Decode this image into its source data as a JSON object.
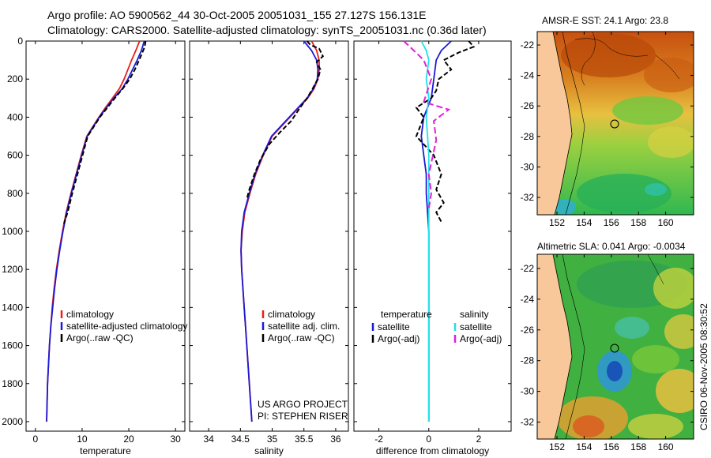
{
  "title": {
    "line1": "Argo profile: AO 5900562_44 30-Oct-2005 20051031_155 27.127S 156.131E",
    "line2": "Climatology: CARS2000. Satellite-adjusted climatology: synTS_20051031.nc (0.36d later)"
  },
  "colors": {
    "climatology": "#e8201a",
    "satellite": "#1a1ad6",
    "argo": "#000000",
    "salinity_sat": "#22e0e8",
    "salinity_argo": "#e020d8",
    "land": "#f8c89a"
  },
  "chart_data": [
    {
      "id": "temperature",
      "type": "line",
      "xlabel": "temperature",
      "xlim": [
        -2,
        32
      ],
      "ylim": [
        0,
        2050
      ],
      "xticks": [
        "0",
        "10",
        "20",
        "30"
      ],
      "yticks": [
        "0",
        "200",
        "400",
        "600",
        "800",
        "1000",
        "1200",
        "1400",
        "1600",
        "1800",
        "2000"
      ],
      "legend": [
        "climatology",
        "satellite-adjusted climatology",
        "Argo(..raw -QC)"
      ],
      "series": [
        {
          "name": "climatology",
          "color": "#e8201a",
          "dash": "",
          "points": [
            [
              22.3,
              0
            ],
            [
              21.5,
              50
            ],
            [
              20.6,
              100
            ],
            [
              19.8,
              150
            ],
            [
              19.0,
              200
            ],
            [
              18.0,
              250
            ],
            [
              16.5,
              300
            ],
            [
              15.0,
              350
            ],
            [
              13.6,
              400
            ],
            [
              12.3,
              450
            ],
            [
              11.0,
              500
            ],
            [
              9.8,
              600
            ],
            [
              8.7,
              700
            ],
            [
              7.6,
              800
            ],
            [
              6.6,
              900
            ],
            [
              5.8,
              1000
            ],
            [
              5.1,
              1100
            ],
            [
              4.5,
              1200
            ],
            [
              4.0,
              1300
            ],
            [
              3.6,
              1400
            ],
            [
              3.3,
              1500
            ],
            [
              3.0,
              1600
            ],
            [
              2.8,
              1700
            ],
            [
              2.6,
              1800
            ],
            [
              2.5,
              1900
            ],
            [
              2.4,
              2000
            ]
          ]
        },
        {
          "name": "satellite",
          "color": "#1a1ad6",
          "dash": "",
          "points": [
            [
              23.3,
              0
            ],
            [
              22.7,
              50
            ],
            [
              21.8,
              100
            ],
            [
              20.8,
              150
            ],
            [
              19.8,
              200
            ],
            [
              18.6,
              250
            ],
            [
              16.8,
              300
            ],
            [
              15.2,
              350
            ],
            [
              13.7,
              400
            ],
            [
              12.4,
              450
            ],
            [
              11.1,
              500
            ],
            [
              9.9,
              600
            ],
            [
              8.8,
              700
            ],
            [
              7.7,
              800
            ],
            [
              6.7,
              900
            ],
            [
              5.9,
              1000
            ],
            [
              5.2,
              1100
            ],
            [
              4.6,
              1200
            ],
            [
              4.1,
              1300
            ],
            [
              3.7,
              1400
            ],
            [
              3.3,
              1500
            ],
            [
              3.0,
              1600
            ],
            [
              2.8,
              1700
            ],
            [
              2.6,
              1800
            ],
            [
              2.5,
              1900
            ],
            [
              2.4,
              2000
            ]
          ]
        },
        {
          "name": "Argo",
          "color": "#000000",
          "dash": "6,3",
          "points": [
            [
              23.6,
              0
            ],
            [
              23.4,
              30
            ],
            [
              22.9,
              60
            ],
            [
              22.2,
              100
            ],
            [
              21.3,
              150
            ],
            [
              20.2,
              200
            ],
            [
              18.7,
              250
            ],
            [
              17.0,
              300
            ],
            [
              15.4,
              350
            ],
            [
              13.8,
              400
            ],
            [
              12.5,
              450
            ],
            [
              11.2,
              500
            ],
            [
              10.1,
              600
            ],
            [
              9.0,
              700
            ],
            [
              7.9,
              800
            ],
            [
              6.9,
              900
            ],
            [
              6.1,
              960
            ]
          ]
        }
      ]
    },
    {
      "id": "salinity",
      "type": "line",
      "xlabel": "salinity",
      "xlim": [
        33.7,
        36.2
      ],
      "ylim": [
        0,
        2050
      ],
      "xticks": [
        "34",
        "34.5",
        "35",
        "35.5",
        "36"
      ],
      "legend": [
        "climatology",
        "satellite adj. clim.",
        "Argo(..raw -QC)"
      ],
      "annotations": [
        "US ARGO PROJECT",
        "PI: STEPHEN RISER"
      ],
      "series": [
        {
          "name": "climatology",
          "color": "#e8201a",
          "dash": "",
          "points": [
            [
              35.62,
              0
            ],
            [
              35.7,
              50
            ],
            [
              35.74,
              100
            ],
            [
              35.74,
              150
            ],
            [
              35.72,
              200
            ],
            [
              35.66,
              250
            ],
            [
              35.56,
              300
            ],
            [
              35.42,
              350
            ],
            [
              35.28,
              400
            ],
            [
              35.14,
              450
            ],
            [
              35.0,
              500
            ],
            [
              34.86,
              600
            ],
            [
              34.74,
              700
            ],
            [
              34.65,
              800
            ],
            [
              34.57,
              900
            ],
            [
              34.53,
              1000
            ],
            [
              34.51,
              1100
            ],
            [
              34.52,
              1200
            ],
            [
              34.54,
              1300
            ],
            [
              34.56,
              1400
            ],
            [
              34.58,
              1500
            ],
            [
              34.6,
              1600
            ],
            [
              34.62,
              1700
            ],
            [
              34.64,
              1800
            ],
            [
              34.66,
              1900
            ],
            [
              34.68,
              2000
            ]
          ]
        },
        {
          "name": "satellite",
          "color": "#1a1ad6",
          "dash": "",
          "points": [
            [
              35.5,
              0
            ],
            [
              35.62,
              50
            ],
            [
              35.7,
              100
            ],
            [
              35.72,
              150
            ],
            [
              35.71,
              200
            ],
            [
              35.65,
              250
            ],
            [
              35.55,
              300
            ],
            [
              35.41,
              350
            ],
            [
              35.27,
              400
            ],
            [
              35.13,
              450
            ],
            [
              34.99,
              500
            ],
            [
              34.85,
              600
            ],
            [
              34.73,
              700
            ],
            [
              34.64,
              800
            ],
            [
              34.56,
              900
            ],
            [
              34.52,
              1000
            ],
            [
              34.51,
              1100
            ],
            [
              34.52,
              1200
            ],
            [
              34.54,
              1300
            ],
            [
              34.56,
              1400
            ],
            [
              34.58,
              1500
            ],
            [
              34.6,
              1600
            ],
            [
              34.62,
              1700
            ],
            [
              34.64,
              1800
            ],
            [
              34.66,
              1900
            ],
            [
              34.68,
              2000
            ]
          ]
        },
        {
          "name": "Argo",
          "color": "#000000",
          "dash": "6,3",
          "points": [
            [
              35.55,
              0
            ],
            [
              35.6,
              20
            ],
            [
              35.74,
              40
            ],
            [
              35.8,
              80
            ],
            [
              35.7,
              110
            ],
            [
              35.76,
              150
            ],
            [
              35.72,
              200
            ],
            [
              35.62,
              260
            ],
            [
              35.55,
              300
            ],
            [
              35.44,
              350
            ],
            [
              35.3,
              420
            ],
            [
              35.12,
              480
            ],
            [
              34.96,
              540
            ],
            [
              34.82,
              620
            ],
            [
              34.72,
              700
            ],
            [
              34.64,
              780
            ],
            [
              34.6,
              830
            ]
          ]
        }
      ]
    },
    {
      "id": "difference",
      "type": "line",
      "xlabel": "difference from climatology",
      "xlim": [
        -3,
        3.3
      ],
      "ylim": [
        0,
        2050
      ],
      "xticks": [
        "-2",
        "0",
        "2"
      ],
      "legend_temperature": {
        "header": "temperature",
        "items": [
          "satellite",
          "Argo(-adj)"
        ]
      },
      "legend_salinity": {
        "header": "salinity",
        "items": [
          "satellite",
          "Argo(-adj)"
        ]
      },
      "series": [
        {
          "name": "temperature satellite",
          "color": "#1a1ad6",
          "dash": "",
          "points": [
            [
              0.9,
              0
            ],
            [
              0.5,
              50
            ],
            [
              0.3,
              100
            ],
            [
              0.2,
              200
            ],
            [
              0.1,
              300
            ],
            [
              -0.2,
              400
            ],
            [
              -0.3,
              500
            ],
            [
              -0.2,
              600
            ],
            [
              -0.1,
              700
            ],
            [
              -0.1,
              800
            ],
            [
              0.0,
              1000
            ],
            [
              0.0,
              1500
            ],
            [
              0.0,
              2000
            ]
          ]
        },
        {
          "name": "temperature Argo",
          "color": "#000000",
          "dash": "6,3",
          "points": [
            [
              1.6,
              0
            ],
            [
              1.8,
              30
            ],
            [
              1.2,
              60
            ],
            [
              0.6,
              100
            ],
            [
              0.9,
              150
            ],
            [
              0.4,
              200
            ],
            [
              0.3,
              260
            ],
            [
              0.1,
              300
            ],
            [
              -0.5,
              350
            ],
            [
              -0.2,
              400
            ],
            [
              -0.5,
              500
            ],
            [
              0.2,
              600
            ],
            [
              0.5,
              700
            ],
            [
              0.3,
              780
            ],
            [
              0.6,
              850
            ],
            [
              0.3,
              900
            ],
            [
              0.5,
              950
            ]
          ]
        },
        {
          "name": "salinity satellite",
          "color": "#22e0e8",
          "dash": "",
          "points": [
            [
              -0.3,
              0
            ],
            [
              -0.1,
              50
            ],
            [
              0.0,
              100
            ],
            [
              -0.1,
              200
            ],
            [
              0.0,
              300
            ],
            [
              -0.1,
              400
            ],
            [
              0.0,
              600
            ],
            [
              0.0,
              800
            ],
            [
              0.0,
              1000
            ],
            [
              0.0,
              1500
            ],
            [
              0.0,
              2000
            ]
          ]
        },
        {
          "name": "salinity Argo",
          "color": "#e020d8",
          "dash": "8,4",
          "points": [
            [
              -1.0,
              0
            ],
            [
              -0.6,
              50
            ],
            [
              -0.2,
              100
            ],
            [
              0.1,
              200
            ],
            [
              -0.2,
              320
            ],
            [
              0.8,
              360
            ],
            [
              0.2,
              420
            ],
            [
              0.3,
              520
            ],
            [
              0.0,
              700
            ],
            [
              0.1,
              800
            ],
            [
              0.0,
              880
            ]
          ]
        }
      ]
    }
  ],
  "maps": [
    {
      "id": "sst",
      "title": "AMSR-E SST: 24.1 Argo: 23.8",
      "xticks": [
        "152",
        "154",
        "156",
        "158",
        "160"
      ],
      "yticks": [
        "-22",
        "-24",
        "-26",
        "-28",
        "-30",
        "-32"
      ]
    },
    {
      "id": "sla",
      "title": "Altimetric SLA: 0.041 Argo: -0.0034",
      "xticks": [
        "152",
        "154",
        "156",
        "158",
        "160"
      ],
      "yticks": [
        "-22",
        "-24",
        "-26",
        "-28",
        "-30",
        "-32"
      ]
    }
  ],
  "side_text": "CSIRO 06-Nov-2005 08:30:52"
}
